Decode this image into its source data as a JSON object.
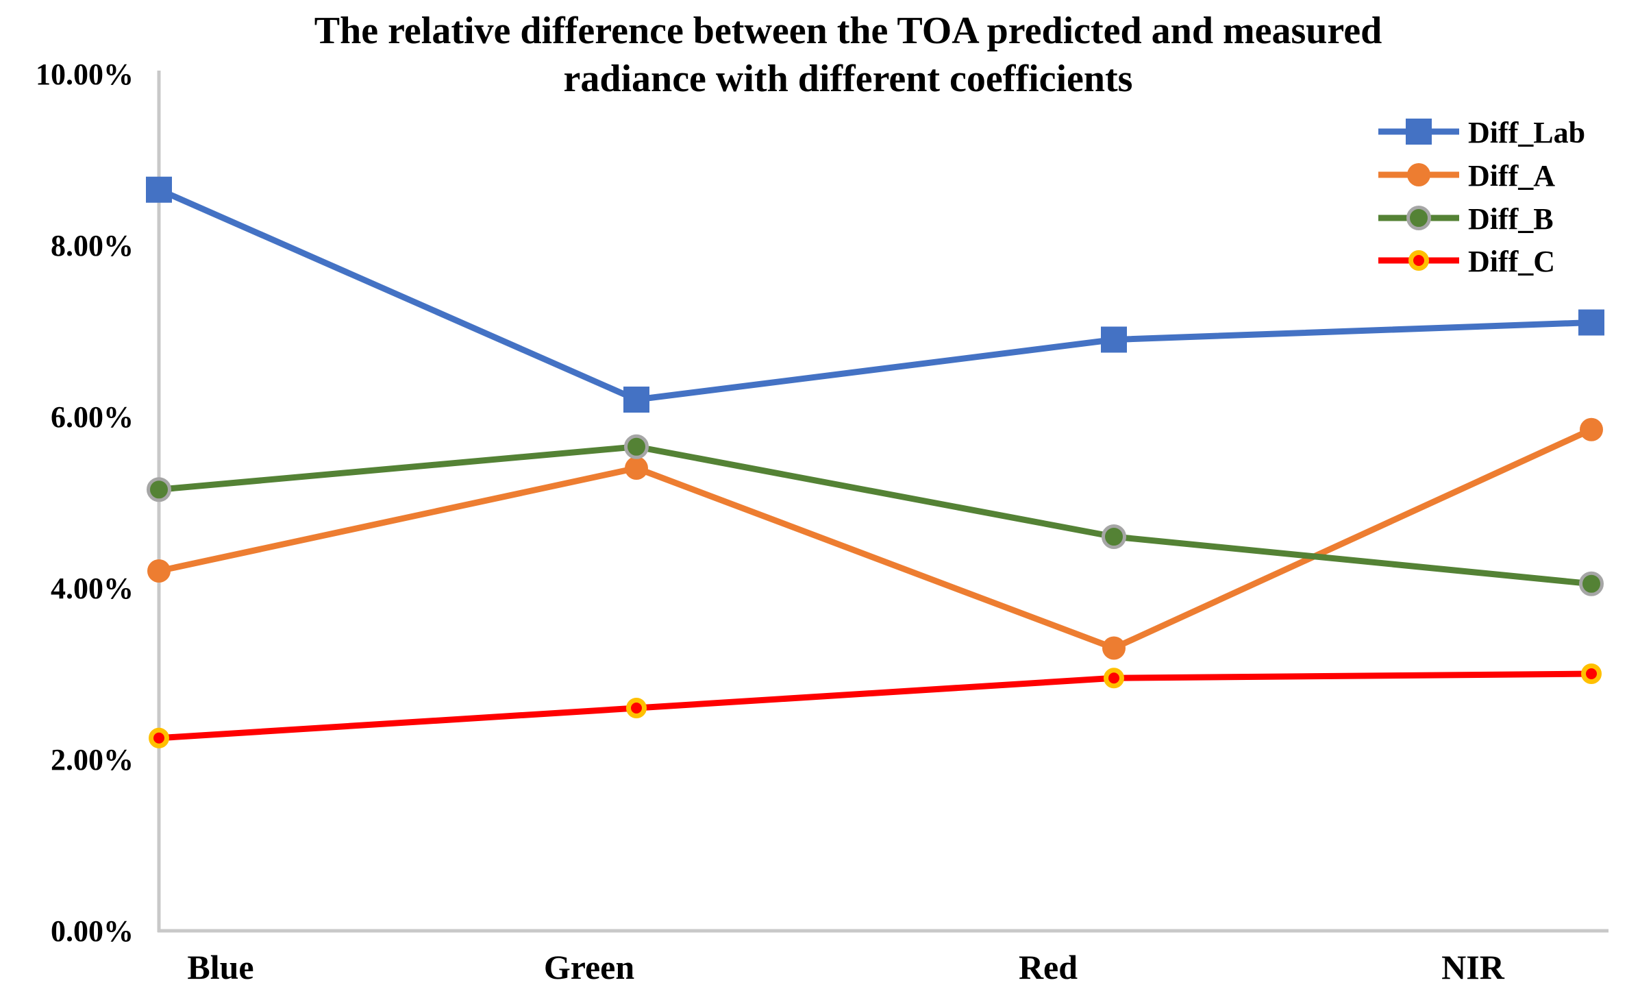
{
  "chart_data": {
    "type": "line",
    "title": "The relative difference between the TOA predicted and measured radiance with different coefficients",
    "title_lines": [
      "The relative difference between the TOA predicted and measured",
      "radiance with different coefficients"
    ],
    "categories": [
      "Blue",
      "Green",
      "Red",
      "NIR"
    ],
    "y_ticks": [
      "10.00%",
      "8.00%",
      "6.00%",
      "4.00%",
      "2.00%",
      "0.00%"
    ],
    "ylim": [
      0,
      10
    ],
    "y_unit": "percent",
    "grid": false,
    "legend_position": "top-right",
    "series": [
      {
        "name": "Diff_Lab",
        "marker": "square",
        "color": "#4472C4",
        "values": [
          8.65,
          6.2,
          6.9,
          7.1
        ]
      },
      {
        "name": "Diff_A",
        "marker": "circle",
        "color": "#ED7D31",
        "values": [
          4.2,
          5.4,
          3.3,
          5.85
        ]
      },
      {
        "name": "Diff_B",
        "marker": "circle",
        "color": "#548235",
        "marker_border": "#A6A6A6",
        "values": [
          5.15,
          5.65,
          4.6,
          4.05
        ]
      },
      {
        "name": "Diff_C",
        "marker": "circle",
        "color": "#FF0000",
        "marker_border": "#FFC000",
        "values": [
          2.25,
          2.6,
          2.95,
          3.0
        ]
      }
    ],
    "axis_color": "#C8C8C8"
  }
}
